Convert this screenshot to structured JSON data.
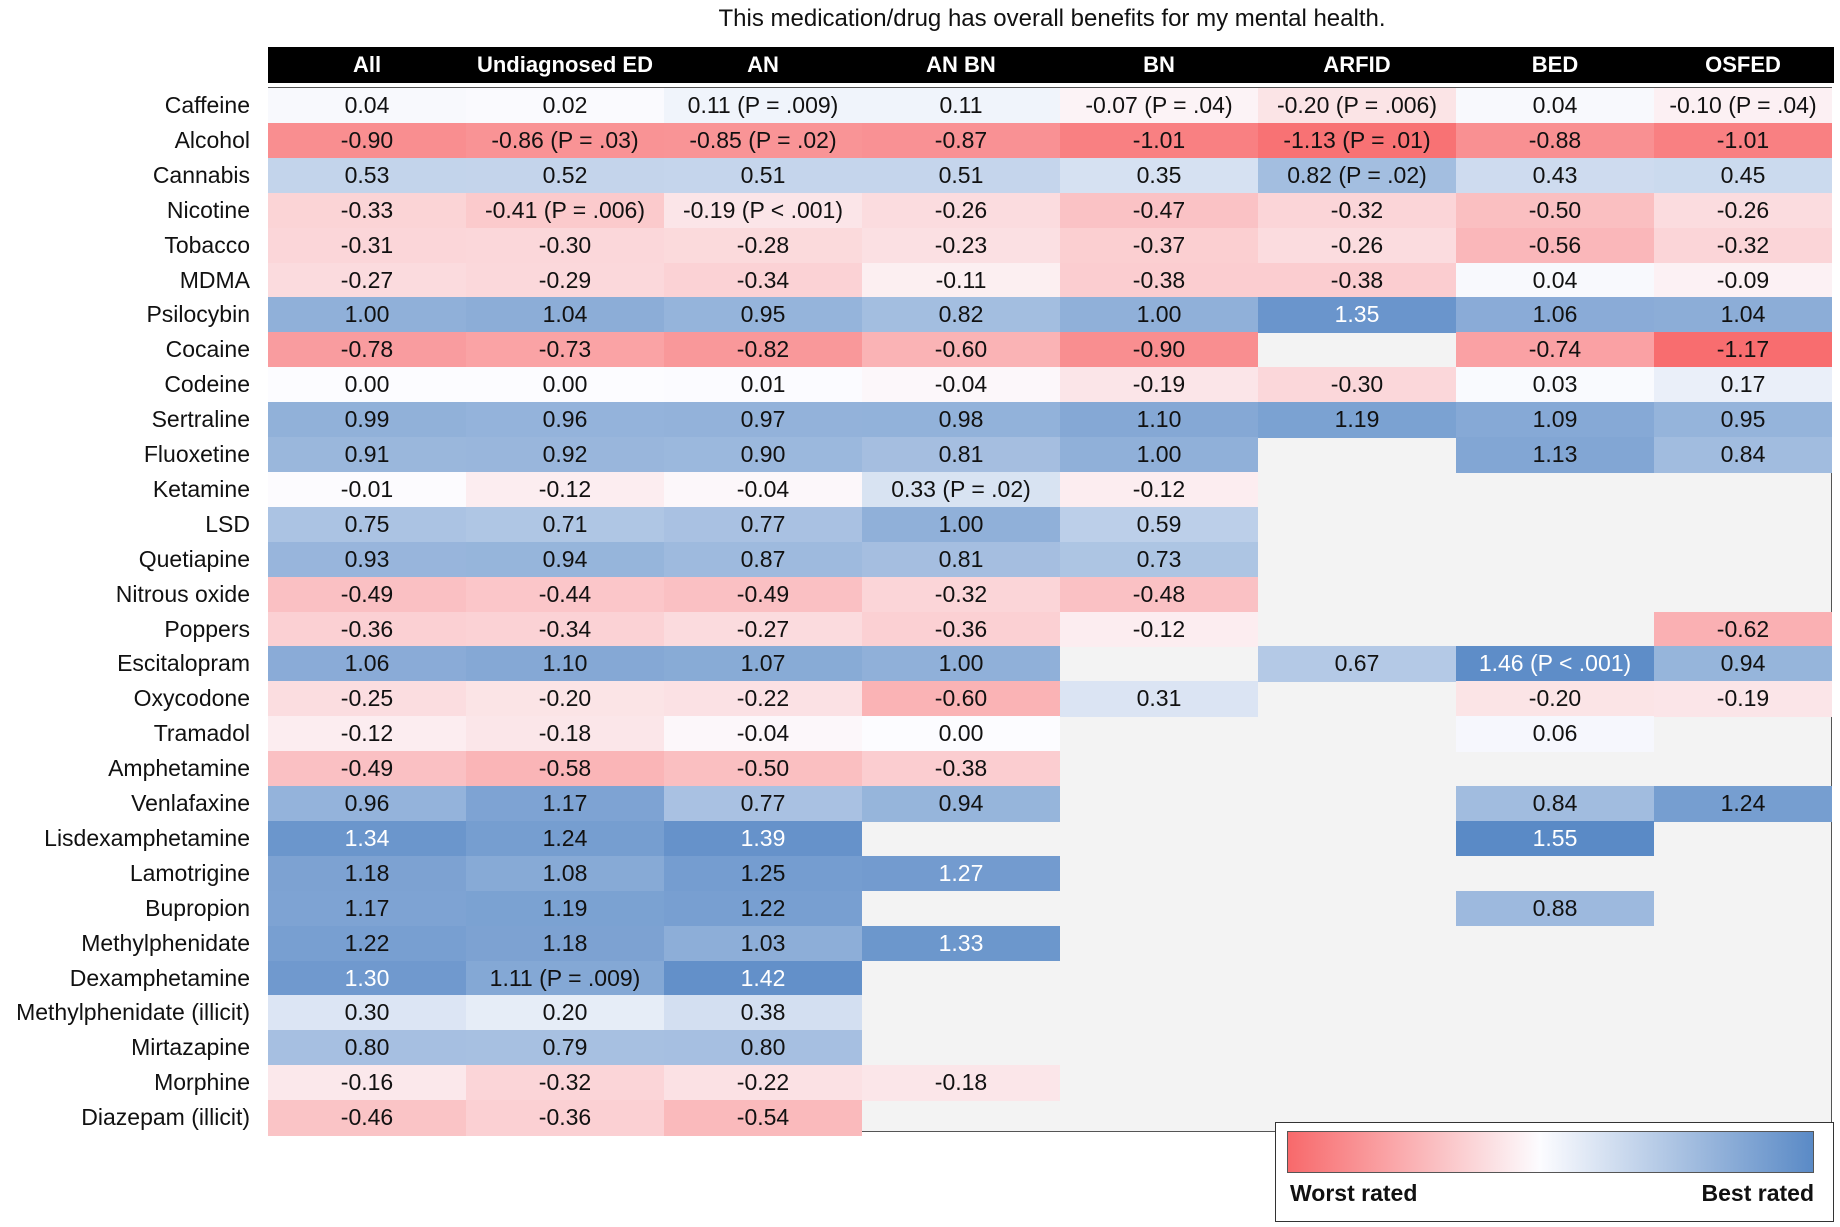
{
  "chart_data": {
    "type": "heatmap",
    "title": "This medication/drug has overall benefits for my mental health.",
    "columns": [
      "All",
      "Undiagnosed ED",
      "AN",
      "AN BN",
      "BN",
      "ARFID",
      "BED",
      "OSFED"
    ],
    "rows": [
      "Caffeine",
      "Alcohol",
      "Cannabis",
      "Nicotine",
      "Tobacco",
      "MDMA",
      "Psilocybin",
      "Cocaine",
      "Codeine",
      "Sertraline",
      "Fluoxetine",
      "Ketamine",
      "LSD",
      "Quetiapine",
      "Nitrous oxide",
      "Poppers",
      "Escitalopram",
      "Oxycodone",
      "Tramadol",
      "Amphetamine",
      "Venlafaxine",
      "Lisdexamphetamine",
      "Lamotrigine",
      "Bupropion",
      "Methylphenidate",
      "Dexamphetamine",
      "Methylphenidate (illicit)",
      "Mirtazapine",
      "Morphine",
      "Diazepam (illicit)"
    ],
    "values": [
      [
        0.04,
        0.02,
        0.11,
        0.11,
        -0.07,
        -0.2,
        0.04,
        -0.1
      ],
      [
        -0.9,
        -0.86,
        -0.85,
        -0.87,
        -1.01,
        -1.13,
        -0.88,
        -1.01
      ],
      [
        0.53,
        0.52,
        0.51,
        0.51,
        0.35,
        0.82,
        0.43,
        0.45
      ],
      [
        -0.33,
        -0.41,
        -0.19,
        -0.26,
        -0.47,
        -0.32,
        -0.5,
        -0.26
      ],
      [
        -0.31,
        -0.3,
        -0.28,
        -0.23,
        -0.37,
        -0.26,
        -0.56,
        -0.32
      ],
      [
        -0.27,
        -0.29,
        -0.34,
        -0.11,
        -0.38,
        -0.38,
        0.04,
        -0.09
      ],
      [
        1.0,
        1.04,
        0.95,
        0.82,
        1.0,
        1.35,
        1.06,
        1.04
      ],
      [
        -0.78,
        -0.73,
        -0.82,
        -0.6,
        -0.9,
        null,
        -0.74,
        -1.17
      ],
      [
        0.0,
        0.0,
        0.01,
        -0.04,
        -0.19,
        -0.3,
        0.03,
        0.17
      ],
      [
        0.99,
        0.96,
        0.97,
        0.98,
        1.1,
        1.19,
        1.09,
        0.95
      ],
      [
        0.91,
        0.92,
        0.9,
        0.81,
        1.0,
        null,
        1.13,
        0.84
      ],
      [
        -0.01,
        -0.12,
        -0.04,
        0.33,
        -0.12,
        null,
        null,
        null
      ],
      [
        0.75,
        0.71,
        0.77,
        1.0,
        0.59,
        null,
        null,
        null
      ],
      [
        0.93,
        0.94,
        0.87,
        0.81,
        0.73,
        null,
        null,
        null
      ],
      [
        -0.49,
        -0.44,
        -0.49,
        -0.32,
        -0.48,
        null,
        null,
        null
      ],
      [
        -0.36,
        -0.34,
        -0.27,
        -0.36,
        -0.12,
        null,
        null,
        -0.62
      ],
      [
        1.06,
        1.1,
        1.07,
        1.0,
        null,
        0.67,
        1.46,
        0.94
      ],
      [
        -0.25,
        -0.2,
        -0.22,
        -0.6,
        0.31,
        null,
        -0.2,
        -0.19
      ],
      [
        -0.12,
        -0.18,
        -0.04,
        0.0,
        null,
        null,
        0.06,
        null
      ],
      [
        -0.49,
        -0.58,
        -0.5,
        -0.38,
        null,
        null,
        null,
        null
      ],
      [
        0.96,
        1.17,
        0.77,
        0.94,
        null,
        null,
        0.84,
        1.24
      ],
      [
        1.34,
        1.24,
        1.39,
        null,
        null,
        null,
        1.55,
        null
      ],
      [
        1.18,
        1.08,
        1.25,
        1.27,
        null,
        null,
        null,
        null
      ],
      [
        1.17,
        1.19,
        1.22,
        null,
        null,
        null,
        0.88,
        null
      ],
      [
        1.22,
        1.18,
        1.03,
        1.33,
        null,
        null,
        null,
        null
      ],
      [
        1.3,
        1.11,
        1.42,
        null,
        null,
        null,
        null,
        null
      ],
      [
        0.3,
        0.2,
        0.38,
        null,
        null,
        null,
        null,
        null
      ],
      [
        0.8,
        0.79,
        0.8,
        null,
        null,
        null,
        null,
        null
      ],
      [
        -0.16,
        -0.32,
        -0.22,
        -0.18,
        null,
        null,
        null,
        null
      ],
      [
        -0.46,
        -0.36,
        -0.54,
        null,
        null,
        null,
        null,
        null
      ]
    ],
    "labels": [
      [
        "0.04",
        "0.02",
        "0.11 (P = .009)",
        "0.11",
        "-0.07 (P = .04)",
        "-0.20 (P = .006)",
        "0.04",
        "-0.10 (P = .04)"
      ],
      [
        "-0.90",
        "-0.86 (P = .03)",
        "-0.85 (P = .02)",
        "-0.87",
        "-1.01",
        "-1.13 (P = .01)",
        "-0.88",
        "-1.01"
      ],
      [
        "0.53",
        "0.52",
        "0.51",
        "0.51",
        "0.35",
        "0.82 (P = .02)",
        "0.43",
        "0.45"
      ],
      [
        "-0.33",
        "-0.41 (P = .006)",
        "-0.19 (P < .001)",
        "-0.26",
        "-0.47",
        "-0.32",
        "-0.50",
        "-0.26"
      ],
      [
        "-0.31",
        "-0.30",
        "-0.28",
        "-0.23",
        "-0.37",
        "-0.26",
        "-0.56",
        "-0.32"
      ],
      [
        "-0.27",
        "-0.29",
        "-0.34",
        "-0.11",
        "-0.38",
        "-0.38",
        "0.04",
        "-0.09"
      ],
      [
        "1.00",
        "1.04",
        "0.95",
        "0.82",
        "1.00",
        "1.35",
        "1.06",
        "1.04"
      ],
      [
        "-0.78",
        "-0.73",
        "-0.82",
        "-0.60",
        "-0.90",
        null,
        "-0.74",
        "-1.17"
      ],
      [
        "0.00",
        "0.00",
        "0.01",
        "-0.04",
        "-0.19",
        "-0.30",
        "0.03",
        "0.17"
      ],
      [
        "0.99",
        "0.96",
        "0.97",
        "0.98",
        "1.10",
        "1.19",
        "1.09",
        "0.95"
      ],
      [
        "0.91",
        "0.92",
        "0.90",
        "0.81",
        "1.00",
        null,
        "1.13",
        "0.84"
      ],
      [
        "-0.01",
        "-0.12",
        "-0.04",
        "0.33 (P = .02)",
        "-0.12",
        null,
        null,
        null
      ],
      [
        "0.75",
        "0.71",
        "0.77",
        "1.00",
        "0.59",
        null,
        null,
        null
      ],
      [
        "0.93",
        "0.94",
        "0.87",
        "0.81",
        "0.73",
        null,
        null,
        null
      ],
      [
        "-0.49",
        "-0.44",
        "-0.49",
        "-0.32",
        "-0.48",
        null,
        null,
        null
      ],
      [
        "-0.36",
        "-0.34",
        "-0.27",
        "-0.36",
        "-0.12",
        null,
        null,
        "-0.62"
      ],
      [
        "1.06",
        "1.10",
        "1.07",
        "1.00",
        null,
        "0.67",
        "1.46 (P < .001)",
        "0.94"
      ],
      [
        "-0.25",
        "-0.20",
        "-0.22",
        "-0.60",
        "0.31",
        null,
        "-0.20",
        "-0.19"
      ],
      [
        "-0.12",
        "-0.18",
        "-0.04",
        "0.00",
        null,
        null,
        "0.06",
        null
      ],
      [
        "-0.49",
        "-0.58",
        "-0.50",
        "-0.38",
        null,
        null,
        null,
        null
      ],
      [
        "0.96",
        "1.17",
        "0.77",
        "0.94",
        null,
        null,
        "0.84",
        "1.24"
      ],
      [
        "1.34",
        "1.24",
        "1.39",
        null,
        null,
        null,
        "1.55",
        null
      ],
      [
        "1.18",
        "1.08",
        "1.25",
        "1.27",
        null,
        null,
        null,
        null
      ],
      [
        "1.17",
        "1.19",
        "1.22",
        null,
        null,
        null,
        "0.88",
        null
      ],
      [
        "1.22",
        "1.18",
        "1.03",
        "1.33",
        null,
        null,
        null,
        null
      ],
      [
        "1.30",
        "1.11 (P = .009)",
        "1.42",
        null,
        null,
        null,
        null,
        null
      ],
      [
        "0.30",
        "0.20",
        "0.38",
        null,
        null,
        null,
        null,
        null
      ],
      [
        "0.80",
        "0.79",
        "0.80",
        null,
        null,
        null,
        null,
        null
      ],
      [
        "-0.16",
        "-0.32",
        "-0.22",
        "-0.18",
        null,
        null,
        null,
        null
      ],
      [
        "-0.46",
        "-0.36",
        "-0.54",
        null,
        null,
        null,
        null,
        null
      ]
    ],
    "color_scale": {
      "low_color": "#f8696b",
      "mid_color": "#fcfcff",
      "high_color": "#5a8ac6",
      "min": -1.2,
      "max": 1.5
    },
    "legend": {
      "low_label": "Worst rated",
      "high_label": "Best rated"
    },
    "missing_color": "#f3f3f3",
    "grid": false
  }
}
